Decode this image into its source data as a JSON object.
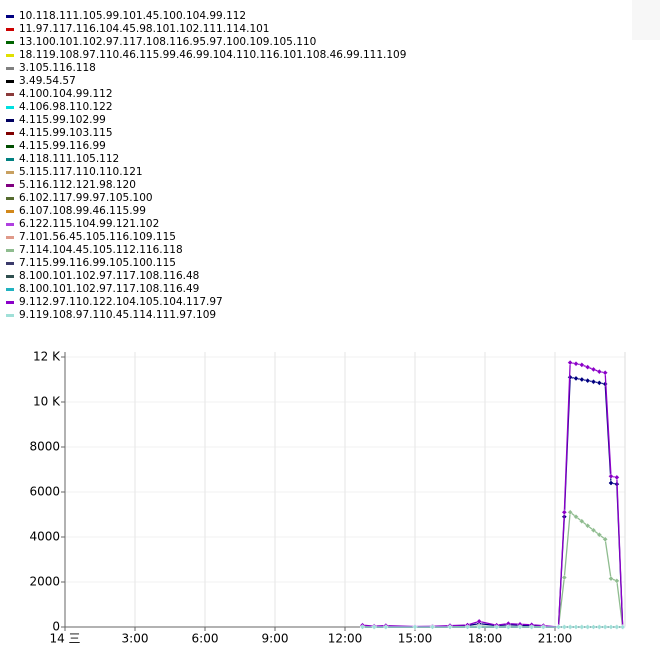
{
  "chart_data": {
    "type": "line",
    "x": [
      12.75,
      13.25,
      13.75,
      15,
      15.75,
      16.5,
      17.25,
      17.75,
      18.5,
      19,
      19.5,
      20,
      20.5,
      21.15,
      21.4,
      21.65,
      21.9,
      22.15,
      22.4,
      22.65,
      22.9,
      23.15,
      23.4,
      23.65,
      23.9
    ],
    "xlim": [
      0,
      24
    ],
    "xticks": [
      {
        "value": 0,
        "label": "14 三"
      },
      {
        "value": 3,
        "label": "3:00"
      },
      {
        "value": 6,
        "label": "6:00"
      },
      {
        "value": 9,
        "label": "9:00"
      },
      {
        "value": 12,
        "label": "12:00"
      },
      {
        "value": 15,
        "label": "15:00"
      },
      {
        "value": 18,
        "label": "18:00"
      },
      {
        "value": 21,
        "label": "21:00"
      }
    ],
    "ylim": [
      0,
      12000
    ],
    "yticks": [
      0,
      2000,
      4000,
      6000,
      8000,
      {
        "value": 10000,
        "label": "10 K"
      },
      {
        "value": 12000,
        "label": "12 K"
      }
    ],
    "grid": true,
    "series": [
      {
        "name": "10.118.111.105.99.101.45.100.104.99.112",
        "color": "#000080",
        "values": [
          40,
          30,
          20,
          10,
          20,
          40,
          60,
          150,
          60,
          100,
          80,
          60,
          40,
          0,
          4900,
          11100,
          11050,
          11000,
          10950,
          10900,
          10850,
          10800,
          6400,
          6350,
          0
        ]
      },
      {
        "name": "11.97.117.116.104.45.98.101.102.111.114.101",
        "color": "#cc0000",
        "values": [
          0,
          0,
          0,
          0,
          0,
          0,
          0,
          0,
          0,
          0,
          0,
          0,
          0,
          0,
          0,
          0,
          0,
          0,
          0,
          0,
          0,
          0,
          0,
          0,
          0
        ]
      },
      {
        "name": "13.100.101.102.97.117.108.116.95.97.100.109.105.110",
        "color": "#006400",
        "values": [
          0,
          0,
          0,
          0,
          0,
          0,
          0,
          0,
          0,
          0,
          0,
          0,
          0,
          0,
          0,
          0,
          0,
          0,
          0,
          0,
          0,
          0,
          0,
          0,
          0
        ]
      },
      {
        "name": "18.119.108.97.110.46.115.99.46.99.104.110.116.101.108.46.99.111.109",
        "color": "#e0e000",
        "values": [
          0,
          0,
          0,
          0,
          0,
          0,
          0,
          0,
          0,
          0,
          0,
          0,
          0,
          0,
          0,
          0,
          0,
          0,
          0,
          0,
          0,
          0,
          0,
          0,
          0
        ]
      },
      {
        "name": "3.105.116.118",
        "color": "#808080",
        "values": [
          0,
          0,
          0,
          0,
          0,
          0,
          0,
          0,
          0,
          0,
          0,
          0,
          0,
          0,
          0,
          0,
          0,
          0,
          0,
          0,
          0,
          0,
          0,
          0,
          0
        ]
      },
      {
        "name": "3.49.54.57",
        "color": "#000000",
        "values": [
          0,
          0,
          0,
          0,
          0,
          0,
          0,
          0,
          0,
          0,
          0,
          0,
          0,
          0,
          0,
          0,
          0,
          0,
          0,
          0,
          0,
          0,
          0,
          0,
          0
        ]
      },
      {
        "name": "4.100.104.99.112",
        "color": "#8b3a3a",
        "values": [
          0,
          0,
          0,
          0,
          0,
          0,
          0,
          0,
          0,
          0,
          0,
          0,
          0,
          0,
          0,
          0,
          0,
          0,
          0,
          0,
          0,
          0,
          0,
          0,
          0
        ]
      },
      {
        "name": "4.106.98.110.122",
        "color": "#00e0e0",
        "values": [
          0,
          0,
          0,
          0,
          0,
          0,
          0,
          0,
          0,
          0,
          0,
          0,
          0,
          0,
          0,
          0,
          0,
          0,
          0,
          0,
          0,
          0,
          0,
          0,
          0
        ]
      },
      {
        "name": "4.115.99.102.99",
        "color": "#000060",
        "values": [
          0,
          0,
          0,
          0,
          0,
          0,
          0,
          0,
          0,
          0,
          0,
          0,
          0,
          0,
          0,
          0,
          0,
          0,
          0,
          0,
          0,
          0,
          0,
          0,
          0
        ]
      },
      {
        "name": "4.115.99.103.115",
        "color": "#800000",
        "values": [
          0,
          0,
          0,
          0,
          0,
          0,
          0,
          0,
          0,
          0,
          0,
          0,
          0,
          0,
          0,
          0,
          0,
          0,
          0,
          0,
          0,
          0,
          0,
          0,
          0
        ]
      },
      {
        "name": "4.115.99.116.99",
        "color": "#004d00",
        "values": [
          0,
          0,
          0,
          0,
          0,
          0,
          0,
          0,
          0,
          0,
          0,
          0,
          0,
          0,
          0,
          0,
          0,
          0,
          0,
          0,
          0,
          0,
          0,
          0,
          0
        ]
      },
      {
        "name": "4.118.111.105.112",
        "color": "#008080",
        "values": [
          0,
          0,
          0,
          0,
          0,
          0,
          0,
          0,
          0,
          0,
          0,
          0,
          0,
          0,
          0,
          0,
          0,
          0,
          0,
          0,
          0,
          0,
          0,
          0,
          0
        ]
      },
      {
        "name": "5.115.117.110.110.121",
        "color": "#c8a060",
        "values": [
          0,
          0,
          0,
          0,
          0,
          0,
          0,
          0,
          0,
          0,
          0,
          0,
          0,
          0,
          0,
          0,
          0,
          0,
          0,
          0,
          0,
          0,
          0,
          0,
          0
        ]
      },
      {
        "name": "5.116.112.121.98.120",
        "color": "#800080",
        "values": [
          0,
          0,
          0,
          0,
          0,
          0,
          0,
          0,
          0,
          0,
          0,
          0,
          0,
          0,
          0,
          0,
          0,
          0,
          0,
          0,
          0,
          0,
          0,
          0,
          0
        ]
      },
      {
        "name": "6.102.117.99.97.105.100",
        "color": "#556b2f",
        "values": [
          0,
          0,
          0,
          0,
          0,
          0,
          0,
          0,
          0,
          0,
          0,
          0,
          0,
          0,
          0,
          0,
          0,
          0,
          0,
          0,
          0,
          0,
          0,
          0,
          0
        ]
      },
      {
        "name": "6.107.108.99.46.115.99",
        "color": "#d2881a",
        "values": [
          0,
          0,
          0,
          0,
          0,
          0,
          0,
          0,
          0,
          0,
          0,
          0,
          0,
          0,
          0,
          0,
          0,
          0,
          0,
          0,
          0,
          0,
          0,
          0,
          0
        ]
      },
      {
        "name": "6.122.115.104.99.121.102",
        "color": "#b040e0",
        "values": [
          0,
          0,
          0,
          0,
          0,
          0,
          0,
          0,
          0,
          0,
          0,
          0,
          0,
          0,
          0,
          0,
          0,
          0,
          0,
          0,
          0,
          0,
          0,
          0,
          0
        ]
      },
      {
        "name": "7.101.56.45.105.116.109.115",
        "color": "#e09a8a",
        "values": [
          0,
          0,
          0,
          0,
          0,
          0,
          0,
          0,
          0,
          0,
          0,
          0,
          0,
          0,
          0,
          0,
          0,
          0,
          0,
          0,
          0,
          0,
          0,
          0,
          0
        ]
      },
      {
        "name": "7.114.104.45.105.112.116.118",
        "color": "#8fbc8f",
        "values": [
          0,
          0,
          0,
          0,
          0,
          0,
          0,
          50,
          0,
          0,
          0,
          0,
          0,
          0,
          2200,
          5100,
          4900,
          4700,
          4500,
          4300,
          4100,
          3900,
          2150,
          2050,
          0
        ]
      },
      {
        "name": "7.115.99.116.99.105.100.115",
        "color": "#3b3b6b",
        "values": [
          0,
          0,
          0,
          0,
          0,
          0,
          0,
          0,
          0,
          0,
          0,
          0,
          0,
          0,
          0,
          0,
          0,
          0,
          0,
          0,
          0,
          0,
          0,
          0,
          0
        ]
      },
      {
        "name": "8.100.101.102.97.117.108.116.48",
        "color": "#2f4f4f",
        "values": [
          0,
          0,
          0,
          0,
          0,
          0,
          0,
          0,
          0,
          0,
          0,
          0,
          0,
          0,
          0,
          0,
          0,
          0,
          0,
          0,
          0,
          0,
          0,
          0,
          0
        ]
      },
      {
        "name": "8.100.101.102.97.117.108.116.49",
        "color": "#20b2c0",
        "values": [
          0,
          0,
          0,
          0,
          0,
          0,
          0,
          0,
          0,
          0,
          0,
          0,
          0,
          0,
          0,
          0,
          0,
          0,
          0,
          0,
          0,
          0,
          0,
          0,
          0
        ]
      },
      {
        "name": "9.112.97.110.122.104.105.104.117.97",
        "color": "#8b00c8",
        "values": [
          80,
          40,
          60,
          20,
          30,
          60,
          90,
          250,
          80,
          150,
          120,
          100,
          60,
          0,
          5100,
          11750,
          11700,
          11650,
          11550,
          11450,
          11350,
          11300,
          6700,
          6650,
          0
        ]
      },
      {
        "name": "9.119.108.97.110.45.114.111.97.109",
        "color": "#a0e0d8",
        "values": [
          0,
          0,
          0,
          0,
          0,
          0,
          0,
          0,
          0,
          0,
          0,
          0,
          0,
          0,
          0,
          0,
          0,
          0,
          0,
          0,
          0,
          0,
          0,
          0,
          0
        ]
      }
    ]
  }
}
